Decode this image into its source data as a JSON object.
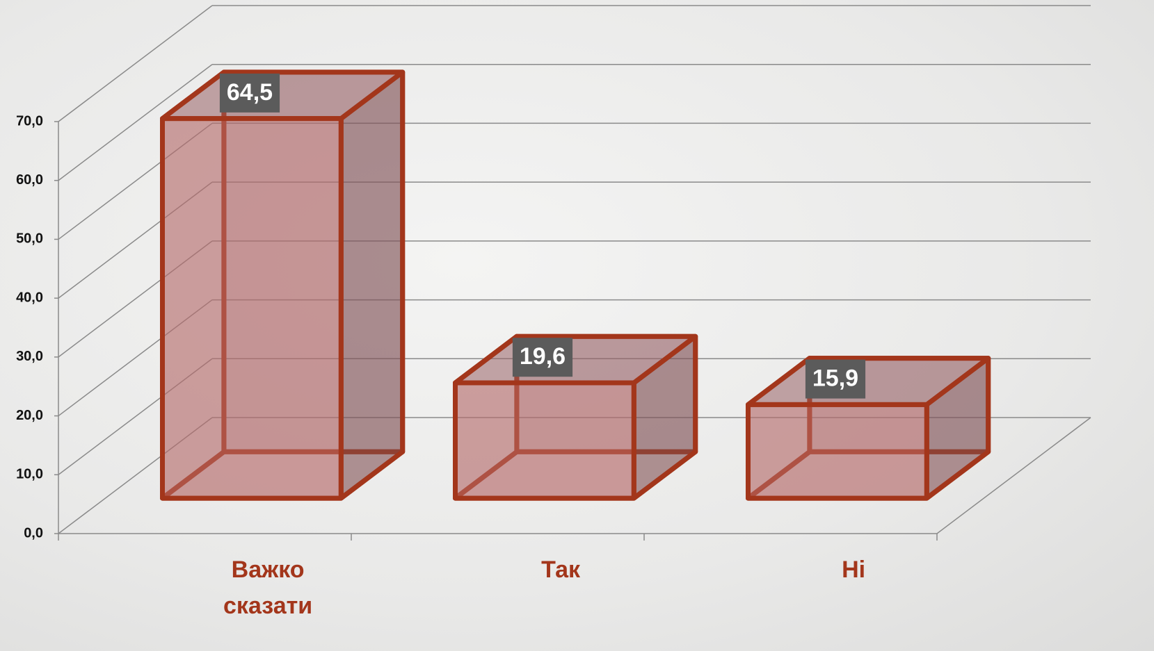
{
  "chart_data": {
    "type": "bar3d",
    "categories": [
      "Важко сказати",
      "Так",
      "Ні"
    ],
    "values": [
      64.5,
      19.6,
      15.9
    ],
    "value_labels": [
      "64,5",
      "19,6",
      "15,9"
    ],
    "color": "#a3361b",
    "ylim": [
      0,
      70
    ],
    "yticks": [
      {
        "value": 0,
        "label": "0,0"
      },
      {
        "value": 10,
        "label": "10,0"
      },
      {
        "value": 20,
        "label": "20,0"
      },
      {
        "value": 30,
        "label": "30,0"
      },
      {
        "value": 40,
        "label": "40,0"
      },
      {
        "value": 50,
        "label": "50,0"
      },
      {
        "value": 60,
        "label": "60,0"
      },
      {
        "value": 70,
        "label": "70,0"
      }
    ],
    "grid": true
  }
}
